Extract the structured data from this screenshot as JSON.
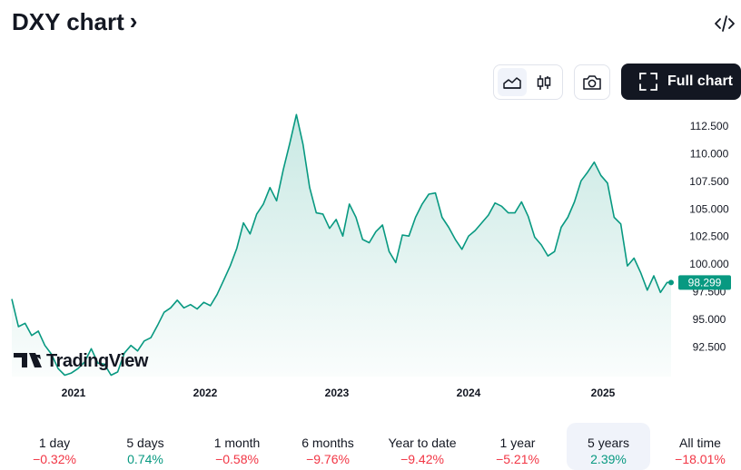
{
  "header": {
    "title": "DXY chart",
    "title_chevron": "›"
  },
  "toolbar": {
    "full_chart_label": "Full chart",
    "chart_style_active": "line"
  },
  "watermark": {
    "text": "TradingView"
  },
  "colors": {
    "line": "#089981",
    "negative": "#f23645",
    "positive": "#089981",
    "dark_button": "#131722"
  },
  "periods": [
    {
      "label": "1 day",
      "change": "−0.32%",
      "direction": "neg",
      "active": false
    },
    {
      "label": "5 days",
      "change": "0.74%",
      "direction": "pos",
      "active": false
    },
    {
      "label": "1 month",
      "change": "−0.58%",
      "direction": "neg",
      "active": false
    },
    {
      "label": "6 months",
      "change": "−9.76%",
      "direction": "neg",
      "active": false
    },
    {
      "label": "Year to date",
      "change": "−9.42%",
      "direction": "neg",
      "active": false
    },
    {
      "label": "1 year",
      "change": "−5.21%",
      "direction": "neg",
      "active": false
    },
    {
      "label": "5 years",
      "change": "2.39%",
      "direction": "pos",
      "active": true
    },
    {
      "label": "All time",
      "change": "−18.01%",
      "direction": "neg",
      "active": false
    }
  ],
  "chart_data": {
    "type": "area",
    "title": "DXY",
    "y_ticks": [
      112.5,
      110.0,
      107.5,
      105.0,
      102.5,
      100.0,
      97.5,
      95.0,
      92.5
    ],
    "y_tick_labels": [
      "112.500",
      "110.000",
      "107.500",
      "105.000",
      "102.500",
      "100.000",
      "97.500",
      "95.000",
      "92.500"
    ],
    "x_ticks": [
      2021,
      2022,
      2023,
      2024,
      2025
    ],
    "x_tick_labels": [
      "2021",
      "2022",
      "2023",
      "2024",
      "2025"
    ],
    "last_value": 98.299,
    "last_value_label": "98.299",
    "grid": false,
    "series": [
      {
        "x": [
          2020.55,
          2020.6,
          2020.65,
          2020.7,
          2020.75,
          2020.8,
          2020.85,
          2020.9,
          2020.95,
          2021.0,
          2021.05,
          2021.1,
          2021.15,
          2021.2,
          2021.25,
          2021.3,
          2021.35,
          2021.4,
          2021.45,
          2021.5,
          2021.55,
          2021.6,
          2021.65,
          2021.7,
          2021.75,
          2021.8,
          2021.85,
          2021.9,
          2021.95,
          2022.0,
          2022.05,
          2022.1,
          2022.15,
          2022.2,
          2022.25,
          2022.3,
          2022.35,
          2022.4,
          2022.45,
          2022.5,
          2022.55,
          2022.6,
          2022.65,
          2022.7,
          2022.75,
          2022.8,
          2022.85,
          2022.9,
          2022.95,
          2023.0,
          2023.05,
          2023.1,
          2023.15,
          2023.2,
          2023.25,
          2023.3,
          2023.35,
          2023.4,
          2023.45,
          2023.5,
          2023.55,
          2023.6,
          2023.65,
          2023.7,
          2023.75,
          2023.8,
          2023.85,
          2023.9,
          2023.95,
          2024.0,
          2024.05,
          2024.1,
          2024.15,
          2024.2,
          2024.25,
          2024.3,
          2024.35,
          2024.4,
          2024.45,
          2024.5,
          2024.55,
          2024.6,
          2024.65,
          2024.7,
          2024.75,
          2024.8,
          2024.85,
          2024.9,
          2024.95,
          2025.0,
          2025.05,
          2025.1,
          2025.15,
          2025.2,
          2025.25,
          2025.3,
          2025.35,
          2025.4,
          2025.45,
          2025.5,
          2025.53
        ],
        "y": [
          96.8,
          94.3,
          94.6,
          93.5,
          93.9,
          92.6,
          91.8,
          90.5,
          89.9,
          90.1,
          90.5,
          91.1,
          92.3,
          91.0,
          90.9,
          89.9,
          90.2,
          91.9,
          92.6,
          92.1,
          93.0,
          93.3,
          94.4,
          95.6,
          96.0,
          96.7,
          96.0,
          96.3,
          95.9,
          96.5,
          96.2,
          97.2,
          98.5,
          99.8,
          101.4,
          103.7,
          102.7,
          104.5,
          105.4,
          106.9,
          105.7,
          108.5,
          110.9,
          113.5,
          110.8,
          106.9,
          104.6,
          104.5,
          103.2,
          104.0,
          102.5,
          105.4,
          104.2,
          102.2,
          101.9,
          102.9,
          103.5,
          101.1,
          100.1,
          102.6,
          102.5,
          104.2,
          105.4,
          106.3,
          106.4,
          104.2,
          103.3,
          102.2,
          101.3,
          102.5,
          103.0,
          103.7,
          104.4,
          105.5,
          105.2,
          104.6,
          104.6,
          105.6,
          104.3,
          102.4,
          101.7,
          100.7,
          101.1,
          103.3,
          104.2,
          105.6,
          107.5,
          108.3,
          109.2,
          108.0,
          107.3,
          104.2,
          103.6,
          99.8,
          100.5,
          99.2,
          97.6,
          98.9,
          97.4,
          98.3,
          98.299
        ]
      }
    ]
  }
}
